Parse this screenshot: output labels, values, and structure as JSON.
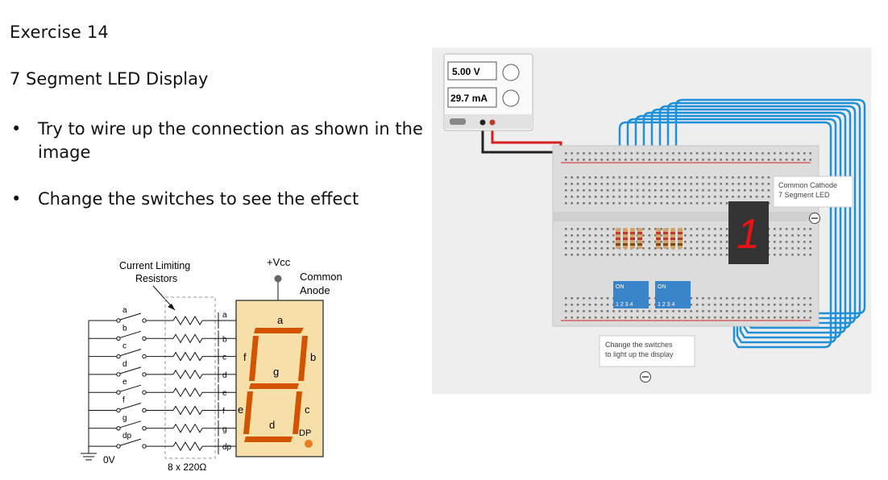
{
  "page": {
    "title": "Exercise 14",
    "subtitle": "7 Segment LED Display",
    "bullets": [
      {
        "marker": "•",
        "text": "Try to wire up the connection as shown in the image"
      },
      {
        "marker": "•",
        "text": "Change the switches to see the effect"
      }
    ]
  },
  "schematic": {
    "resistors_label_line1": "Current Limiting",
    "resistors_label_line2": "Resistors",
    "vcc": "+Vcc",
    "anode_line1": "Common",
    "anode_line2": "Anode",
    "ground": "0V",
    "resistor_value": "8 x 220Ω",
    "switch_labels": [
      "a",
      "b",
      "c",
      "d",
      "e",
      "f",
      "g",
      "dp"
    ],
    "pin_labels": [
      "a",
      "b",
      "c",
      "d",
      "e",
      "f",
      "g",
      "dp"
    ],
    "segments": {
      "a": "a",
      "b": "b",
      "c": "c",
      "d": "d",
      "e": "e",
      "f": "f",
      "g": "g",
      "dp": "DP"
    },
    "colors": {
      "segment": "#d35400",
      "display_bg": "#f6dfa8",
      "dp": "#e67e22"
    }
  },
  "simulator": {
    "voltage": "5.00 V",
    "current": "29.7 mA",
    "display_callout_line1": "Common Cathode",
    "display_callout_line2": "7 Segment LED",
    "switch_callout_line1": "Change the switches",
    "switch_callout_line2": "to light up the display",
    "dip_on": "ON",
    "dip_numbers": "1 2 3 4",
    "display_digit": "1",
    "colors": {
      "wire": "#1e90d6",
      "wire_red": "#d62020",
      "wire_black": "#222222",
      "led_red": "#e41414"
    }
  }
}
